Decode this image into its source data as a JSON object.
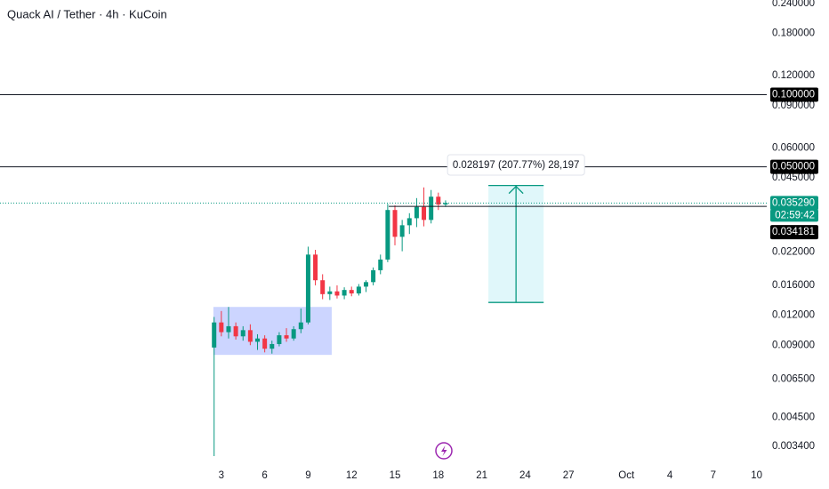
{
  "chart_data": {
    "type": "candlestick",
    "title": "Quack AI / Tether · 4h · KuCoin",
    "log_scale": true,
    "grid": true,
    "up_color": "#089981",
    "down_color": "#f23645",
    "x": [
      2.5,
      3,
      3.5,
      4,
      4.5,
      5,
      5.5,
      6,
      6.5,
      7,
      7.5,
      8,
      8.5,
      9,
      9.5,
      10,
      10.5,
      11,
      11.5,
      12,
      12.5,
      13,
      13.5,
      14,
      14.5,
      15,
      15.5,
      16,
      16.5,
      17,
      17.5,
      18,
      18.5
    ],
    "open": [
      0.0088,
      0.0112,
      0.0102,
      0.0108,
      0.0098,
      0.0104,
      0.0093,
      0.0096,
      0.0087,
      0.0091,
      0.0099,
      0.0096,
      0.0105,
      0.0112,
      0.0215,
      0.0168,
      0.0147,
      0.0151,
      0.0145,
      0.0153,
      0.0148,
      0.0158,
      0.0165,
      0.0185,
      0.0205,
      0.033,
      0.0255,
      0.0285,
      0.0305,
      0.034,
      0.03,
      0.0375,
      0.0348
    ],
    "high": [
      0.0118,
      0.0125,
      0.013,
      0.0112,
      0.0108,
      0.011,
      0.01,
      0.0099,
      0.0094,
      0.0102,
      0.0106,
      0.0108,
      0.0128,
      0.0232,
      0.0225,
      0.0178,
      0.0158,
      0.016,
      0.0157,
      0.0158,
      0.0162,
      0.0168,
      0.019,
      0.0215,
      0.035,
      0.0345,
      0.03,
      0.032,
      0.037,
      0.041,
      0.04,
      0.039,
      0.0362
    ],
    "low": [
      0.0031,
      0.0098,
      0.0096,
      0.0095,
      0.0094,
      0.009,
      0.0086,
      0.0084,
      0.0083,
      0.0089,
      0.0093,
      0.0094,
      0.0101,
      0.011,
      0.016,
      0.014,
      0.0139,
      0.0141,
      0.014,
      0.0144,
      0.0145,
      0.015,
      0.016,
      0.0178,
      0.02,
      0.0235,
      0.0222,
      0.0262,
      0.028,
      0.0282,
      0.029,
      0.033,
      0.034
    ],
    "close": [
      0.0112,
      0.0102,
      0.0108,
      0.0098,
      0.0104,
      0.0093,
      0.0096,
      0.0087,
      0.0091,
      0.0099,
      0.0096,
      0.0105,
      0.0112,
      0.0215,
      0.0168,
      0.0147,
      0.0151,
      0.0145,
      0.0153,
      0.0148,
      0.0158,
      0.0165,
      0.0185,
      0.0205,
      0.033,
      0.0255,
      0.0285,
      0.0305,
      0.034,
      0.03,
      0.0375,
      0.0348,
      0.03529
    ],
    "xlim": [
      -12.3,
      40.7
    ],
    "xticks": [
      3,
      6,
      9,
      12,
      15,
      18,
      21,
      24,
      27,
      {
        "value": 31,
        "label": "Oct"
      },
      {
        "value": 34,
        "label": "4"
      },
      {
        "value": 37,
        "label": "7"
      },
      {
        "value": 40,
        "label": "10"
      }
    ],
    "ylim": [
      0.00292,
      0.2483
    ],
    "yticks": [
      {
        "value": 0.24,
        "label": "0.240000"
      },
      {
        "value": 0.18,
        "label": "0.180000"
      },
      {
        "value": 0.12,
        "label": "0.120000"
      },
      {
        "value": 0.09,
        "label": "0.090000"
      },
      {
        "value": 0.06,
        "label": "0.060000"
      },
      {
        "value": 0.045,
        "label": "0.045000"
      },
      {
        "value": 0.022,
        "label": "0.022000"
      },
      {
        "value": 0.016,
        "label": "0.016000"
      },
      {
        "value": 0.012,
        "label": "0.012000"
      },
      {
        "value": 0.009,
        "label": "0.009000"
      },
      {
        "value": 0.0065,
        "label": "0.006500"
      },
      {
        "value": 0.0045,
        "label": "0.004500"
      },
      {
        "value": 0.0034,
        "label": "0.003400"
      }
    ],
    "horizontal_lines": [
      {
        "value": 0.1,
        "label": "0.100000"
      },
      {
        "value": 0.05,
        "label": "0.050000"
      }
    ],
    "last_price": {
      "value": 0.03529,
      "label": "0.035290",
      "countdown": "02:59:42"
    },
    "ray": {
      "value": 0.034181,
      "label": "0.034181",
      "x_start": 14.57
    },
    "range_box": {
      "x": [
        2.45,
        10.63
      ],
      "price": [
        0.0082,
        0.013
      ]
    },
    "measure": {
      "x": [
        21.46,
        25.28
      ],
      "price": [
        0.013571,
        0.041768
      ],
      "label": "0.028197 (207.77%) 28,197"
    }
  }
}
